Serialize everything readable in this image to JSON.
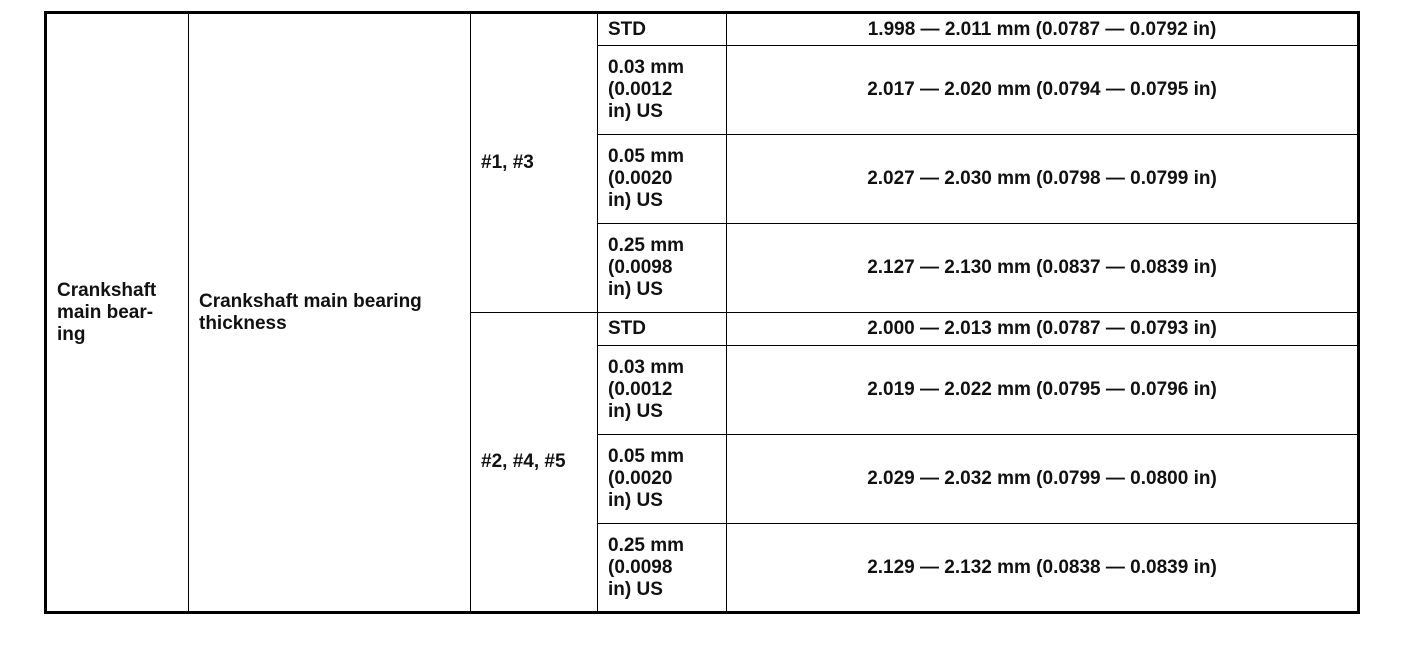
{
  "table": {
    "item_lines": [
      "Crankshaft",
      "main bear-",
      "ing"
    ],
    "sub_item": "Crankshaft main bearing thickness",
    "groups": [
      {
        "journals": "#1, #3",
        "rows": [
          {
            "grade_lines": [
              "STD"
            ],
            "value": "1.998 — 2.011 mm (0.0787 — 0.0792 in)"
          },
          {
            "grade_lines": [
              "0.03 mm",
              "(0.0012",
              "in) US"
            ],
            "value": "2.017 — 2.020 mm (0.0794 — 0.0795 in)"
          },
          {
            "grade_lines": [
              "0.05 mm",
              "(0.0020",
              "in) US"
            ],
            "value": "2.027 — 2.030 mm (0.0798 — 0.0799 in)"
          },
          {
            "grade_lines": [
              "0.25 mm",
              "(0.0098",
              "in) US"
            ],
            "value": "2.127 — 2.130 mm (0.0837 — 0.0839 in)"
          }
        ]
      },
      {
        "journals": "#2, #4, #5",
        "rows": [
          {
            "grade_lines": [
              "STD"
            ],
            "value": "2.000 — 2.013 mm (0.0787 — 0.0793 in)"
          },
          {
            "grade_lines": [
              "0.03 mm",
              "(0.0012",
              "in) US"
            ],
            "value": "2.019 — 2.022 mm (0.0795 — 0.0796 in)"
          },
          {
            "grade_lines": [
              "0.05 mm",
              "(0.0020",
              "in) US"
            ],
            "value": "2.029 — 2.032 mm (0.0799 — 0.0800 in)"
          },
          {
            "grade_lines": [
              "0.25 mm",
              "(0.0098",
              "in) US"
            ],
            "value": "2.129 — 2.132 mm (0.0838 — 0.0839 in)"
          }
        ]
      }
    ]
  }
}
